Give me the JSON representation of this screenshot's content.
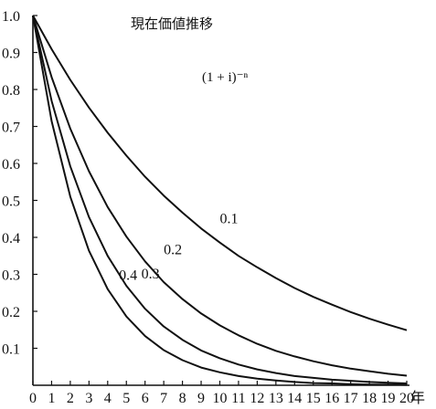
{
  "chart_data": {
    "type": "line",
    "title": "現在価値推移",
    "annotation": "(1 + i)⁻ⁿ",
    "xlabel": "",
    "ylabel": "",
    "x_unit": "年",
    "x": [
      0,
      1,
      2,
      3,
      4,
      5,
      6,
      7,
      8,
      9,
      10,
      11,
      12,
      13,
      14,
      15,
      16,
      17,
      18,
      19,
      20
    ],
    "xlim": [
      0,
      20
    ],
    "ylim": [
      0,
      1.0
    ],
    "x_ticks": [
      "0",
      "1",
      "2",
      "3",
      "4",
      "5",
      "6",
      "7",
      "8",
      "9",
      "10",
      "11",
      "12",
      "13",
      "14",
      "15",
      "16",
      "17",
      "18",
      "19",
      "20"
    ],
    "y_ticks": [
      "0.1",
      "0.2",
      "0.3",
      "0.4",
      "0.5",
      "0.6",
      "0.7",
      "0.8",
      "0.9",
      "1.0"
    ],
    "grid": false,
    "series": [
      {
        "name": "0.1",
        "values": [
          1.0,
          0.909,
          0.826,
          0.751,
          0.683,
          0.621,
          0.564,
          0.513,
          0.467,
          0.424,
          0.386,
          0.35,
          0.319,
          0.29,
          0.263,
          0.239,
          0.218,
          0.198,
          0.18,
          0.164,
          0.149
        ]
      },
      {
        "name": "0.2",
        "values": [
          1.0,
          0.833,
          0.694,
          0.579,
          0.482,
          0.402,
          0.335,
          0.279,
          0.233,
          0.194,
          0.162,
          0.135,
          0.112,
          0.093,
          0.078,
          0.065,
          0.054,
          0.045,
          0.038,
          0.031,
          0.026
        ]
      },
      {
        "name": "0.3",
        "values": [
          1.0,
          0.769,
          0.592,
          0.455,
          0.35,
          0.269,
          0.207,
          0.159,
          0.123,
          0.094,
          0.073,
          0.056,
          0.043,
          0.033,
          0.025,
          0.02,
          0.015,
          0.012,
          0.009,
          0.007,
          0.005
        ]
      },
      {
        "name": "0.4",
        "values": [
          1.0,
          0.714,
          0.51,
          0.364,
          0.26,
          0.186,
          0.133,
          0.095,
          0.068,
          0.048,
          0.035,
          0.025,
          0.018,
          0.013,
          0.009,
          0.006,
          0.005,
          0.003,
          0.002,
          0.002,
          0.001
        ]
      }
    ],
    "colors": {
      "line": "#111111",
      "axis": "#111111"
    }
  }
}
